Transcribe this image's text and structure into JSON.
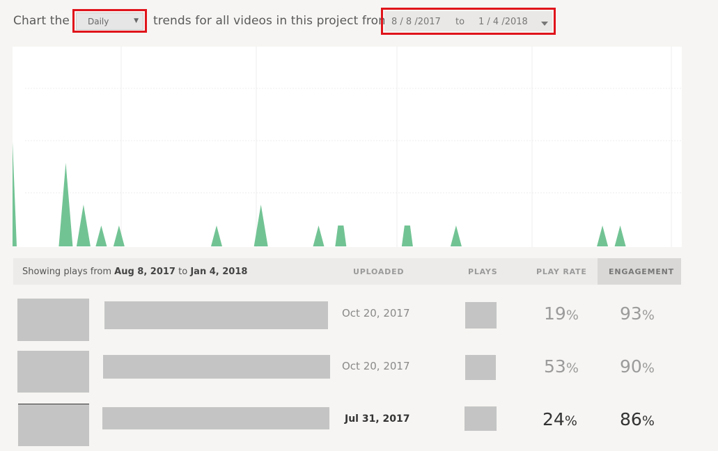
{
  "controls": {
    "prefix": "Chart the",
    "interval_selected": "Daily",
    "middle": "trends for all videos in this project from",
    "date_from": "8 / 8 /2017",
    "date_sep": "to",
    "date_to": "1 / 4 /2018"
  },
  "chart_data": {
    "type": "area",
    "title": "",
    "color": "#72c394",
    "xlim": [
      "2017-08-08",
      "2018-01-04"
    ],
    "grid": true,
    "series": [
      {
        "points": [
          [
            "2017-08-08",
            2.5
          ],
          [
            "2017-08-20",
            2
          ],
          [
            "2017-08-24",
            1
          ],
          [
            "2017-08-28",
            0.5
          ],
          [
            "2017-09-01",
            0.5
          ],
          [
            "2017-09-23",
            0.5
          ],
          [
            "2017-10-03",
            1
          ],
          [
            "2017-10-16",
            0.5
          ],
          [
            "2017-10-21",
            0.5
          ],
          [
            "2017-11-05",
            0.5
          ],
          [
            "2017-11-16",
            0.5
          ],
          [
            "2017-12-19",
            0.5
          ],
          [
            "2017-12-23",
            0.5
          ]
        ]
      }
    ]
  },
  "table": {
    "showing_prefix": "Showing plays from",
    "from": "Aug 8, 2017",
    "to_word": "to",
    "to": "Jan 4, 2018",
    "columns": {
      "uploaded": "UPLOADED",
      "plays": "PLAYS",
      "play_rate": "PLAY RATE",
      "engagement": "ENGAGEMENT"
    },
    "rows": [
      {
        "uploaded": "Oct 20, 2017",
        "play_rate": "19",
        "engagement": "93",
        "pct": "%"
      },
      {
        "uploaded": "Oct 20, 2017",
        "play_rate": "53",
        "engagement": "90",
        "pct": "%"
      },
      {
        "uploaded": "Jul 31, 2017",
        "play_rate": "24",
        "engagement": "86",
        "pct": "%"
      }
    ]
  }
}
